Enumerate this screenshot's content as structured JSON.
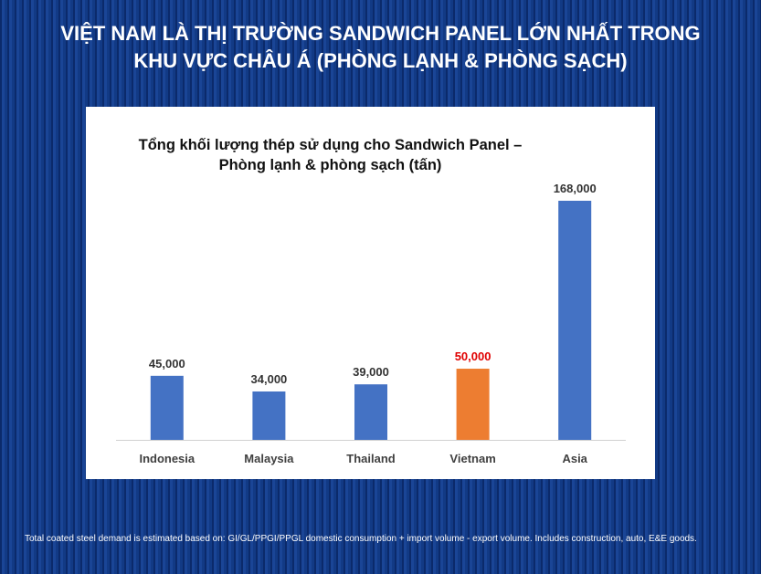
{
  "slide": {
    "title_line1": "VIỆT NAM LÀ THỊ TRƯỜNG SANDWICH PANEL LỚN NHẤT TRONG",
    "title_line2": "KHU VỰC CHÂU Á (PHÒNG LẠNH & PHÒNG SẠCH)",
    "footnote": "Total coated steel demand is estimated based on: GI/GL/PPGI/PPGL domestic consumption + import volume - export volume. Includes construction, auto, E&E goods."
  },
  "colors": {
    "background": "#0d2f73",
    "bar_default": "#4472c4",
    "bar_highlight": "#ed7d31",
    "label_highlight": "#e00000",
    "label_default": "#333333"
  },
  "chart_data": {
    "type": "bar",
    "title_line1": "Tổng khối lượng thép sử dụng cho Sandwich Panel –",
    "title_line2": "Phòng lạnh & phòng sạch  (tấn)",
    "categories": [
      "Indonesia",
      "Malaysia",
      "Thailand",
      "Vietnam",
      "Asia"
    ],
    "values": [
      45000,
      34000,
      39000,
      50000,
      168000
    ],
    "value_labels": [
      "45,000",
      "34,000",
      "39,000",
      "50,000",
      "168,000"
    ],
    "highlight_index": 3,
    "ylim": [
      0,
      168000
    ],
    "grid": false,
    "legend": "none"
  }
}
